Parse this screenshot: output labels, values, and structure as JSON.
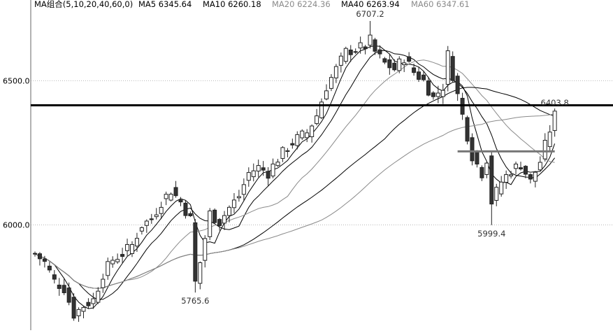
{
  "legend": {
    "group_label": "MA组合(5,10,20,40,60,0)",
    "items": [
      {
        "label": "MA5 6345.64",
        "color": "#000000"
      },
      {
        "label": "MA10 6260.18",
        "color": "#000000"
      },
      {
        "label": "MA20 6224.36",
        "color": "#8a8a8a"
      },
      {
        "label": "MA40 6263.94",
        "color": "#000000"
      },
      {
        "label": "MA60 6347.61",
        "color": "#8a8a8a"
      }
    ]
  },
  "chart_data": {
    "type": "candlestick",
    "y_ticks": [
      {
        "value": 6500,
        "label": "6500.0"
      },
      {
        "value": 6000,
        "label": "6000.0"
      }
    ],
    "ylim": [
      5635,
      6780
    ],
    "grid": "horizontal dotted",
    "annotations": [
      {
        "label": "6707.2",
        "index": 69,
        "value": 6707.2,
        "kind": "high"
      },
      {
        "label": "5765.6",
        "index": 33,
        "value": 5765.6,
        "kind": "low"
      },
      {
        "label": "5999.4",
        "index": 94,
        "value": 5999.4,
        "kind": "low"
      },
      {
        "label": "6403.8",
        "index": 107,
        "value": 6403.8,
        "kind": "last"
      }
    ],
    "horizontal_lines": [
      {
        "value": 6415,
        "from_index": 0,
        "to_index": 117,
        "color": "#000000"
      },
      {
        "value": 6255,
        "from_index": 87,
        "to_index": 107,
        "color": "#777777"
      }
    ],
    "moving_averages": [
      {
        "period": 5,
        "value": 6345.64,
        "color": "#000000"
      },
      {
        "period": 10,
        "value": 6260.18,
        "color": "#000000"
      },
      {
        "period": 20,
        "value": 6224.36,
        "color": "#8a8a8a"
      },
      {
        "period": 40,
        "value": 6263.94,
        "color": "#000000"
      },
      {
        "period": 60,
        "value": 6347.61,
        "color": "#8a8a8a"
      }
    ],
    "close_path": [
      [
        0,
        5900
      ],
      [
        2,
        5870
      ],
      [
        4,
        5805
      ],
      [
        6,
        5780
      ],
      [
        8,
        5690
      ],
      [
        10,
        5720
      ],
      [
        12,
        5740
      ],
      [
        14,
        5830
      ],
      [
        16,
        5880
      ],
      [
        18,
        5900
      ],
      [
        20,
        5930
      ],
      [
        22,
        6000
      ],
      [
        24,
        6020
      ],
      [
        26,
        6080
      ],
      [
        28,
        6120
      ],
      [
        30,
        6080
      ],
      [
        32,
        6020
      ],
      [
        33,
        5800
      ],
      [
        34,
        5870
      ],
      [
        36,
        6040
      ],
      [
        38,
        6010
      ],
      [
        40,
        6060
      ],
      [
        42,
        6100
      ],
      [
        44,
        6180
      ],
      [
        46,
        6200
      ],
      [
        48,
        6180
      ],
      [
        50,
        6230
      ],
      [
        52,
        6270
      ],
      [
        54,
        6300
      ],
      [
        56,
        6320
      ],
      [
        58,
        6380
      ],
      [
        60,
        6480
      ],
      [
        62,
        6540
      ],
      [
        64,
        6600
      ],
      [
        66,
        6610
      ],
      [
        68,
        6620
      ],
      [
        69,
        6640
      ],
      [
        70,
        6600
      ],
      [
        72,
        6560
      ],
      [
        74,
        6540
      ],
      [
        76,
        6580
      ],
      [
        78,
        6530
      ],
      [
        80,
        6500
      ],
      [
        82,
        6440
      ],
      [
        84,
        6480
      ],
      [
        85,
        6590
      ],
      [
        86,
        6520
      ],
      [
        88,
        6380
      ],
      [
        90,
        6240
      ],
      [
        92,
        6180
      ],
      [
        93,
        6230
      ],
      [
        94,
        6080
      ],
      [
        96,
        6150
      ],
      [
        98,
        6190
      ],
      [
        100,
        6210
      ],
      [
        102,
        6150
      ],
      [
        104,
        6220
      ],
      [
        106,
        6330
      ],
      [
        107,
        6380
      ]
    ]
  }
}
